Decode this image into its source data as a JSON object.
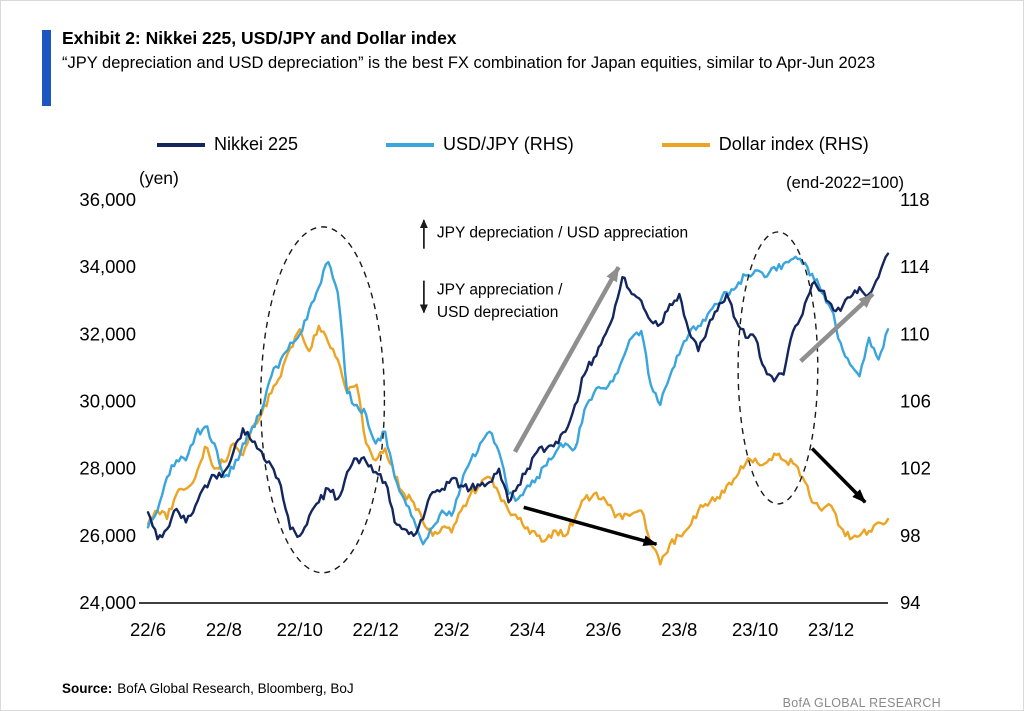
{
  "header": {
    "exhibit_title": "Exhibit 2: Nikkei 225, USD/JPY and Dollar index",
    "subtitle": "“JPY depreciation and USD depreciation” is the best FX combination for Japan equities, similar to Apr-Jun 2023",
    "accent_color": "#1a58c0"
  },
  "footer": {
    "source_label": "Source:",
    "source_text": "BofA Global Research, Bloomberg, BoJ",
    "brand": "BofA GLOBAL RESEARCH"
  },
  "chart_data": {
    "type": "line",
    "grid": false,
    "legend_position": "top",
    "left_axis": {
      "label": "(yen)",
      "min": 24000,
      "max": 36000,
      "tick_step": 2000,
      "tick_values": [
        24000,
        26000,
        28000,
        30000,
        32000,
        34000,
        36000
      ],
      "tick_labels": [
        "24,000",
        "26,000",
        "28,000",
        "30,000",
        "32,000",
        "34,000",
        "36,000"
      ]
    },
    "right_axis": {
      "label": "(end-2022=100)",
      "min": 94,
      "max": 118,
      "tick_step": 4,
      "tick_values": [
        94,
        98,
        102,
        106,
        110,
        114,
        118
      ],
      "tick_labels": [
        "94",
        "98",
        "102",
        "106",
        "110",
        "114",
        "118"
      ]
    },
    "x_axis": {
      "domain_months": [
        0,
        19.5
      ],
      "tick_months": [
        0,
        2,
        4,
        6,
        8,
        10,
        12,
        14,
        16,
        18
      ],
      "tick_labels": [
        "22/6",
        "22/8",
        "22/10",
        "22/12",
        "23/2",
        "23/4",
        "23/6",
        "23/8",
        "23/10",
        "23/12"
      ]
    },
    "x_months": [
      0,
      0.25,
      0.5,
      0.75,
      1,
      1.25,
      1.5,
      1.75,
      2,
      2.25,
      2.5,
      2.75,
      3,
      3.25,
      3.5,
      3.75,
      4,
      4.25,
      4.5,
      4.75,
      5,
      5.25,
      5.5,
      5.75,
      6,
      6.25,
      6.5,
      6.75,
      7,
      7.25,
      7.5,
      7.75,
      8,
      8.25,
      8.5,
      8.75,
      9,
      9.25,
      9.5,
      9.75,
      10,
      10.25,
      10.5,
      10.75,
      11,
      11.25,
      11.5,
      11.75,
      12,
      12.25,
      12.5,
      12.75,
      13,
      13.25,
      13.5,
      13.75,
      14,
      14.25,
      14.5,
      14.75,
      15,
      15.25,
      15.5,
      15.75,
      16,
      16.25,
      16.5,
      16.75,
      17,
      17.25,
      17.5,
      17.75,
      18,
      18.25,
      18.5,
      18.75,
      19,
      19.25,
      19.5
    ],
    "series": [
      {
        "name": "Nikkei 225",
        "axis": "left",
        "color": "#13275e",
        "values": [
          26700,
          25900,
          26200,
          26800,
          26400,
          26900,
          27500,
          27800,
          27900,
          28500,
          29200,
          28800,
          28500,
          28100,
          27500,
          26200,
          26000,
          26600,
          27000,
          27400,
          27100,
          27900,
          28300,
          28200,
          27900,
          27600,
          26400,
          26200,
          26000,
          26500,
          27300,
          27400,
          27700,
          27500,
          27400,
          27500,
          27600,
          28000,
          27000,
          27500,
          28000,
          28500,
          28600,
          28800,
          29100,
          29900,
          30800,
          31300,
          31900,
          32500,
          33700,
          33200,
          33000,
          32400,
          32300,
          32900,
          33200,
          32100,
          31500,
          32200,
          32700,
          33200,
          32400,
          31900,
          31900,
          31000,
          30600,
          30800,
          32100,
          32600,
          33500,
          33300,
          32900,
          32700,
          33100,
          33400,
          33200,
          33700,
          34400
        ]
      },
      {
        "name": "USD/JPY (RHS)",
        "axis": "right",
        "color": "#3aa5dc",
        "values": [
          98.5,
          99.5,
          101.5,
          102.5,
          102.5,
          104,
          104.5,
          103.5,
          101.5,
          102,
          103.5,
          104.5,
          105.5,
          107.5,
          108.5,
          109.5,
          110,
          111.5,
          112.8,
          114.3,
          112.5,
          106.5,
          105.8,
          105.2,
          103.5,
          104.2,
          101.5,
          100.2,
          99,
          97.5,
          98.5,
          99.5,
          99.2,
          101,
          102.5,
          103.5,
          104.2,
          103,
          100.5,
          100.2,
          101,
          101.5,
          102.2,
          103,
          103.5,
          103.2,
          105.5,
          106.5,
          106.8,
          107.2,
          108.5,
          109.8,
          110.2,
          107,
          105.8,
          107.5,
          108.8,
          110,
          110.5,
          111.2,
          111.8,
          112.5,
          112.8,
          113.5,
          113.8,
          113.4,
          114,
          114.2,
          114.5,
          114.2,
          113.6,
          112.5,
          111.5,
          109.5,
          108.2,
          107.5,
          109.8,
          108.5,
          110.3
        ]
      },
      {
        "name": "Dollar index (RHS)",
        "axis": "right",
        "color": "#eca424",
        "values": [
          98.7,
          99.5,
          99,
          100.5,
          100.8,
          101.5,
          103.3,
          102,
          102.4,
          103.5,
          102.8,
          104.5,
          105.3,
          106.5,
          107.5,
          109.2,
          110.3,
          109,
          110.5,
          109.5,
          108.5,
          106.5,
          107,
          103.5,
          102.5,
          103.2,
          101.5,
          100.5,
          100,
          98.8,
          98,
          98.5,
          98.2,
          99.5,
          100.5,
          101,
          101.5,
          100.5,
          99.5,
          99,
          98.5,
          98,
          97.8,
          98.3,
          98,
          99,
          100.2,
          100.5,
          100.3,
          99.5,
          99,
          99.3,
          99.5,
          97.5,
          96.3,
          97.5,
          98,
          98.5,
          99.5,
          99.8,
          100.3,
          101,
          101.5,
          102.3,
          102.6,
          102.3,
          102.9,
          102.5,
          102.3,
          101.5,
          100,
          99.5,
          99.8,
          98.5,
          97.8,
          98,
          98.3,
          98.8,
          99
        ]
      }
    ],
    "annotations": {
      "direction_note": {
        "x_month": 7.27,
        "up_text": "JPY depreciation / USD appreciation",
        "up_arrow_span_yen": [
          34550,
          35400
        ],
        "up_text_yen": 34880,
        "down_text_lines": [
          "JPY appreciation /",
          "USD depreciation"
        ],
        "down_arrow_span_yen": [
          33600,
          32650
        ],
        "down_text_yen": [
          33180,
          32520
        ]
      },
      "ellipses": [
        {
          "cx_month": 4.6,
          "cy_yen": 30050,
          "rx_month": 1.63,
          "ry_yen": 5150
        },
        {
          "cx_month": 16.6,
          "cy_yen": 31000,
          "rx_month": 1.05,
          "ry_yen": 4050
        }
      ],
      "trend_arrows": [
        {
          "color": "gray",
          "from_month": 9.67,
          "from_yen": 28500,
          "to_month": 12.4,
          "to_yen": 34000
        },
        {
          "color": "gray",
          "from_month": 17.2,
          "from_yen": 31200,
          "to_month": 19.1,
          "to_yen": 33200
        },
        {
          "color": "black",
          "from_month": 9.9,
          "from_yen": 26850,
          "to_month": 13.4,
          "to_yen": 25750
        },
        {
          "color": "black",
          "from_month": 17.5,
          "from_yen": 28600,
          "to_month": 18.9,
          "to_yen": 27000
        }
      ]
    }
  }
}
